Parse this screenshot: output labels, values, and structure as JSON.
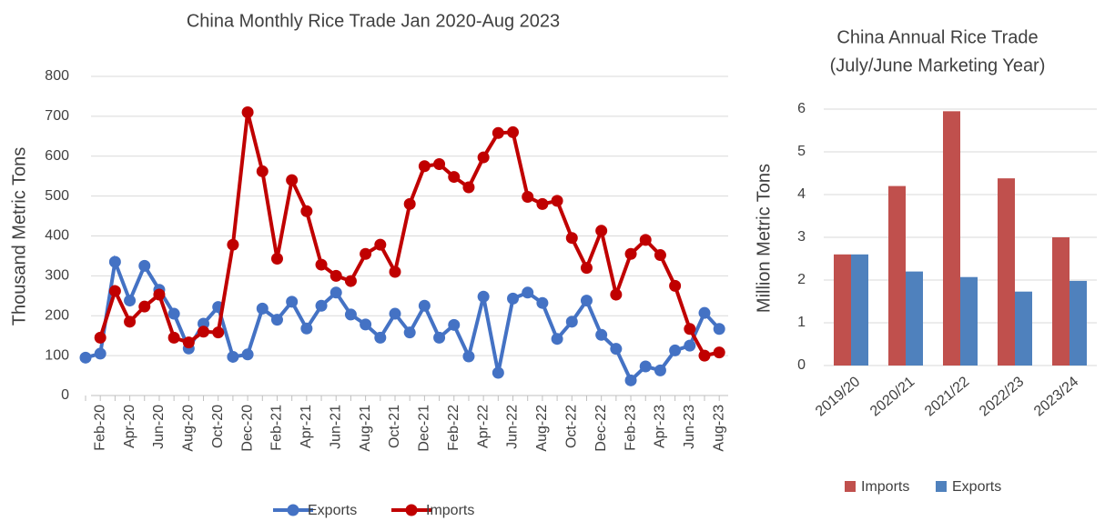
{
  "chart_data": [
    {
      "type": "line",
      "title": "China Monthly Rice Trade Jan 2020-Aug 2023",
      "ylabel": "Thousand Metric Tons",
      "categories": [
        null,
        "Feb-20",
        null,
        "Apr-20",
        null,
        "Jun-20",
        null,
        "Aug-20",
        null,
        "Oct-20",
        null,
        "Dec-20",
        null,
        "Feb-21",
        null,
        "Apr-21",
        null,
        "Jun-21",
        null,
        "Aug-21",
        null,
        "Oct-21",
        null,
        "Dec-21",
        null,
        "Feb-22",
        null,
        "Apr-22",
        null,
        "Jun-22",
        null,
        "Aug-22",
        null,
        "Oct-22",
        null,
        "Dec-22",
        null,
        "Feb-23",
        null,
        "Apr-23",
        null,
        "Jun-23",
        null,
        "Aug-23"
      ],
      "series": [
        {
          "name": "Exports",
          "color": "#4472c4",
          "values": [
            95,
            105,
            335,
            238,
            325,
            265,
            205,
            118,
            180,
            222,
            97,
            103,
            218,
            190,
            235,
            168,
            225,
            258,
            203,
            178,
            145,
            205,
            158,
            225,
            145,
            177,
            98,
            248,
            57,
            243,
            258,
            232,
            142,
            185,
            238,
            152,
            117,
            38,
            73,
            63,
            113,
            125,
            207,
            167
          ]
        },
        {
          "name": "Imports",
          "color": "#c00000",
          "values": [
            null,
            145,
            262,
            185,
            223,
            253,
            145,
            133,
            160,
            158,
            378,
            710,
            562,
            343,
            540,
            462,
            328,
            300,
            287,
            355,
            378,
            310,
            480,
            575,
            580,
            548,
            522,
            597,
            658,
            660,
            498,
            480,
            488,
            395,
            320,
            413,
            253,
            355,
            390,
            352,
            275,
            167,
            100,
            108
          ]
        }
      ],
      "ylim": [
        0,
        800
      ],
      "yticks": [
        0,
        100,
        200,
        300,
        400,
        500,
        600,
        700,
        800
      ],
      "grid": true,
      "legend": "bottom"
    },
    {
      "type": "bar",
      "title": "China Annual Rice Trade",
      "subtitle": "(July/June Marketing Year)",
      "ylabel": "Million Metric Tons",
      "categories": [
        "2019/20",
        "2020/21",
        "2021/22",
        "2022/23",
        "2023/24"
      ],
      "series": [
        {
          "name": "Imports",
          "color": "#c0504d",
          "values": [
            2.6,
            4.2,
            5.95,
            4.38,
            3.0
          ]
        },
        {
          "name": "Exports",
          "color": "#4f81bd",
          "values": [
            2.6,
            2.2,
            2.07,
            1.73,
            1.98
          ]
        }
      ],
      "ylim": [
        0,
        6
      ],
      "yticks": [
        0,
        1,
        2,
        3,
        4,
        5,
        6
      ],
      "grid": true,
      "legend": "bottom"
    }
  ]
}
